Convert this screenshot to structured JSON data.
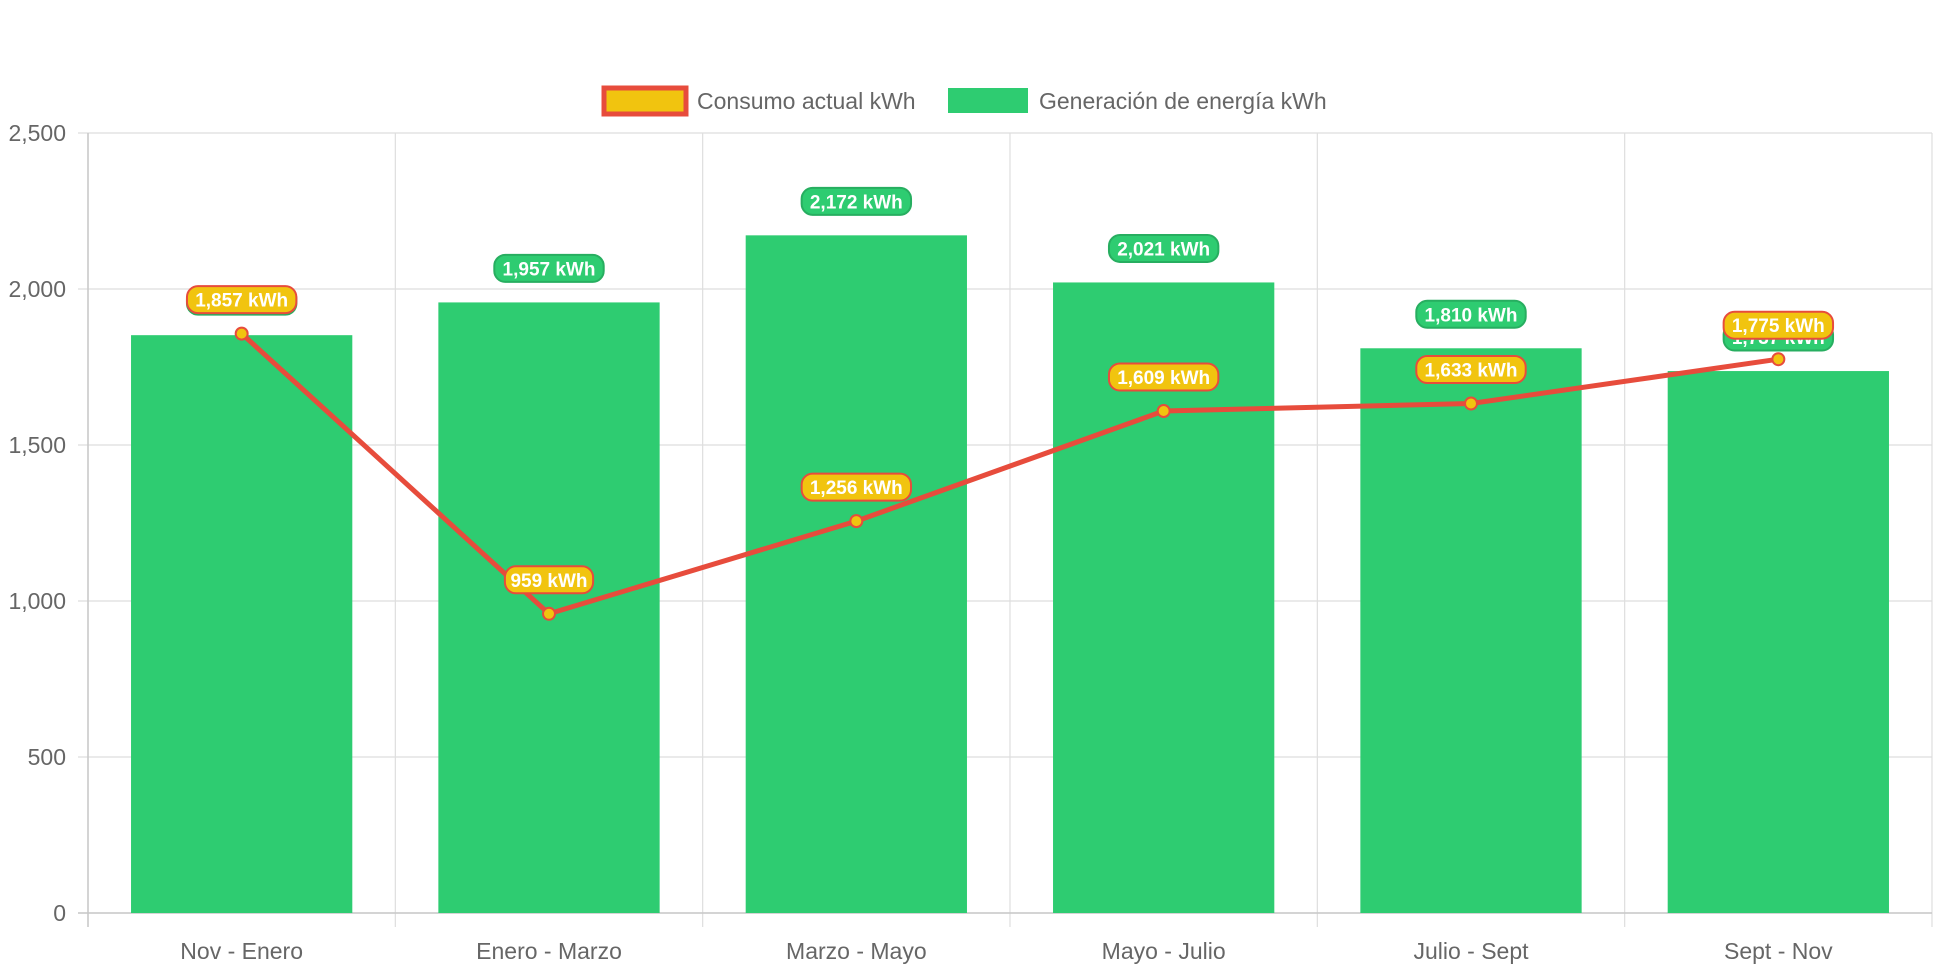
{
  "chart_data": {
    "type": "bar",
    "categories": [
      "Nov - Enero",
      "Enero - Marzo",
      "Marzo - Mayo",
      "Mayo - Julio",
      "Julio - Sept",
      "Sept - Nov"
    ],
    "ylim": [
      0,
      2500
    ],
    "y_ticks": [
      0,
      500,
      1000,
      1500,
      2000,
      2500
    ],
    "y_tick_labels": [
      "0",
      "500",
      "1,000",
      "1,500",
      "2,000",
      "2,500"
    ],
    "grid": true,
    "legend_position": "top",
    "title": "",
    "xlabel": "",
    "ylabel": "",
    "series": [
      {
        "name": "Consumo actual kWh",
        "type": "line",
        "color": "#e74c3c",
        "fill_color": "#f1c40f",
        "values": [
          1857,
          959,
          1256,
          1609,
          1633,
          1775
        ],
        "labels": [
          "1,857 kWh",
          "959 kWh",
          "1,256 kWh",
          "1,609 kWh",
          "1,633 kWh",
          "1,775 kWh"
        ]
      },
      {
        "name": "Generación de energía kWh",
        "type": "bar",
        "color": "#2ecc71",
        "values": [
          1852,
          1957,
          2172,
          2021,
          1810,
          1737
        ],
        "labels": [
          "1,852 kWh",
          "1,957 kWh",
          "2,172 kWh",
          "2,021 kWh",
          "1,810 kWh",
          "1,737 kWh"
        ]
      }
    ]
  }
}
